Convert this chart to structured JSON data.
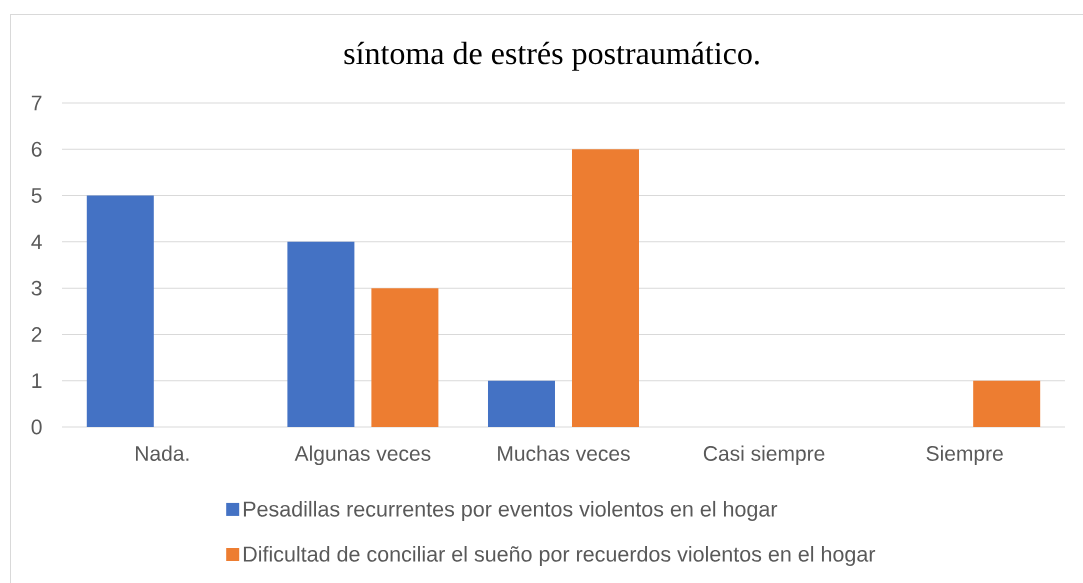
{
  "chart_data": {
    "type": "bar",
    "title": "síntoma de estrés postraumático.",
    "categories": [
      "Nada.",
      "Algunas veces",
      "Muchas veces",
      "Casi siempre",
      "Siempre"
    ],
    "series": [
      {
        "name": "Pesadillas recurrentes por eventos violentos en el hogar",
        "color": "#4472c4",
        "values": [
          5,
          4,
          1,
          0,
          0
        ]
      },
      {
        "name": "Dificultad de conciliar el sueño por recuerdos violentos en el hogar",
        "color": "#ed7d31",
        "values": [
          0,
          3,
          6,
          0,
          1
        ]
      }
    ],
    "ylim": [
      0,
      7
    ],
    "yticks": [
      0,
      1,
      2,
      3,
      4,
      5,
      6,
      7
    ],
    "grid": "y",
    "legend": "bottom"
  }
}
